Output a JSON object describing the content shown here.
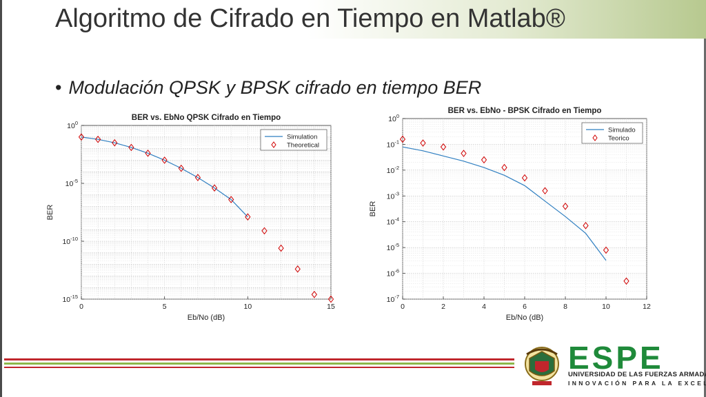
{
  "slide": {
    "title": "Algoritmo de Cifrado en Tiempo en Matlab®",
    "bullet": "Modulación QPSK y BPSK cifrado en tiempo BER"
  },
  "logo": {
    "name": "ESPE",
    "university": "UNIVERSIDAD DE LAS FUERZAS ARMADAS",
    "motto": "INNOVACIÓN PARA LA EXCELENCIA"
  },
  "colors": {
    "accent_green": "#1f8a3a",
    "stripe_red": "#c0262c",
    "stripe_green": "#8cb84a",
    "line_blue": "#2f7fc1",
    "marker_red": "#d00000"
  },
  "chart_data": [
    {
      "type": "line",
      "title": "BER vs. EbNo QPSK Cifrado en Tiempo",
      "xlabel": "Eb/No (dB)",
      "ylabel": "BER",
      "yscale": "log",
      "xlim": [
        0,
        15
      ],
      "ylim_exp": [
        -15,
        0
      ],
      "xticks": [
        0,
        5,
        10,
        15
      ],
      "yticks_exp": [
        -15,
        -10,
        -5,
        0
      ],
      "grid": true,
      "legend_position": "top-right",
      "series": [
        {
          "name": "Simulation",
          "style": "line",
          "x": [
            0,
            1,
            2,
            3,
            4,
            5,
            6,
            7,
            8,
            9,
            10
          ],
          "y_exp": [
            -1.0,
            -1.2,
            -1.5,
            -1.9,
            -2.4,
            -3.0,
            -3.7,
            -4.5,
            -5.4,
            -6.4,
            -7.9
          ]
        },
        {
          "name": "Theoretical",
          "style": "diamond",
          "x": [
            0,
            1,
            2,
            3,
            4,
            5,
            6,
            7,
            8,
            9,
            10,
            11,
            12,
            13,
            14,
            15
          ],
          "y_exp": [
            -1.0,
            -1.2,
            -1.5,
            -1.9,
            -2.4,
            -3.0,
            -3.7,
            -4.5,
            -5.4,
            -6.4,
            -7.9,
            -9.1,
            -10.6,
            -12.4,
            -14.6,
            -15.0
          ]
        }
      ]
    },
    {
      "type": "line",
      "title": "BER vs. EbNo - BPSK Cifrado en Tiempo",
      "xlabel": "Eb/No (dB)",
      "ylabel": "BER",
      "yscale": "log",
      "xlim": [
        0,
        12
      ],
      "ylim_exp": [
        -7,
        0
      ],
      "xticks": [
        0,
        2,
        4,
        6,
        8,
        10,
        12
      ],
      "yticks_exp": [
        -7,
        -6,
        -5,
        -4,
        -3,
        -2,
        -1,
        0
      ],
      "grid": true,
      "legend_position": "top-right",
      "series": [
        {
          "name": "Simulado",
          "style": "line",
          "x": [
            0,
            1,
            2,
            3,
            4,
            5,
            6,
            7,
            8,
            9,
            10
          ],
          "y_exp": [
            -1.1,
            -1.25,
            -1.45,
            -1.65,
            -1.9,
            -2.2,
            -2.6,
            -3.2,
            -3.8,
            -4.45,
            -5.5
          ]
        },
        {
          "name": "Teorico",
          "style": "diamond",
          "x": [
            0,
            1,
            2,
            3,
            4,
            5,
            6,
            7,
            8,
            9,
            10,
            11
          ],
          "y_exp": [
            -0.8,
            -0.95,
            -1.1,
            -1.35,
            -1.6,
            -1.9,
            -2.3,
            -2.8,
            -3.4,
            -4.15,
            -5.1,
            -6.3
          ]
        }
      ]
    }
  ]
}
